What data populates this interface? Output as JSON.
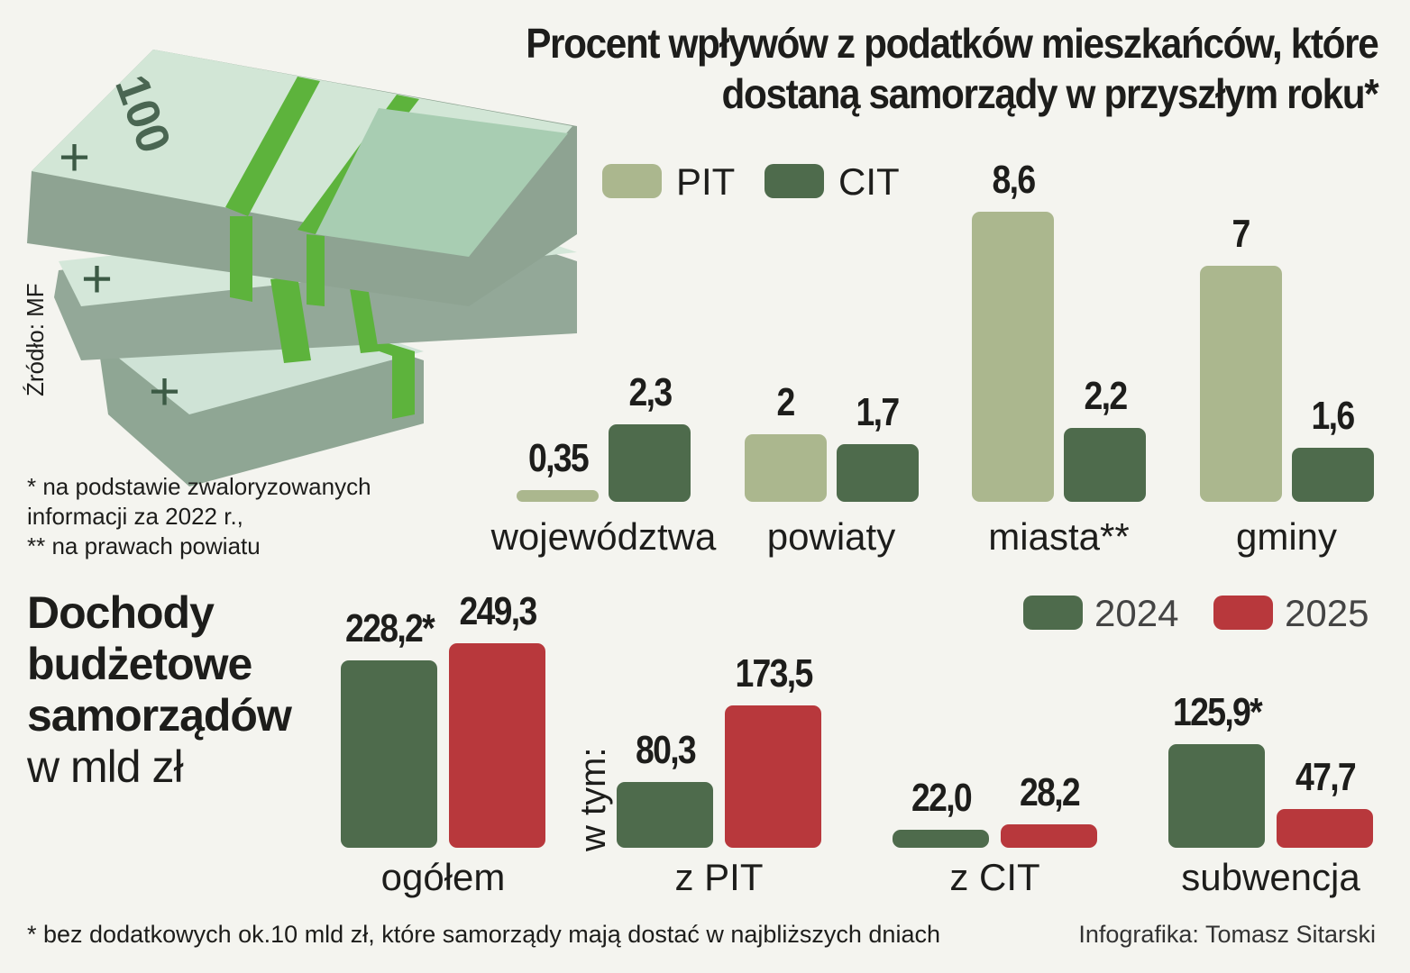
{
  "colors": {
    "pit": "#abb78e",
    "cit": "#4e6b4c",
    "y2024": "#4e6b4c",
    "y2025": "#b8383c",
    "background": "#f4f4ef"
  },
  "title_line1": "Procent wpływów z podatków mieszkańców, które",
  "title_line2": "dostaną samorządy w przyszłym roku*",
  "source": "Źródło: MF",
  "footnote1": "* na podstawie zwaloryzowanych",
  "footnote2": "informacji za 2022 r.,",
  "footnote3": "** na prawach powiatu",
  "bottom_heading": {
    "line1": "Dochody",
    "line2": "budżetowe",
    "line3": "samorządów",
    "line4": "w mld zł"
  },
  "in_which": "w tym:",
  "bottom_footnote": "* bez dodatkowych ok.10 mld zł, które samorządy mają dostać w najbliższych dniach",
  "credit": "Infografika: Tomasz Sitarski",
  "chart_data": [
    {
      "type": "bar",
      "title": "Procent wpływów z podatków mieszkańców, które dostaną samorządy w przyszłym roku*",
      "categories": [
        "województwa",
        "powiaty",
        "miasta**",
        "gminy"
      ],
      "series": [
        {
          "name": "PIT",
          "values": [
            0.35,
            2,
            8.6,
            7
          ],
          "labels": [
            "0,35",
            "2",
            "8,6",
            "7"
          ]
        },
        {
          "name": "CIT",
          "values": [
            2.3,
            1.7,
            2.2,
            1.6
          ],
          "labels": [
            "2,3",
            "1,7",
            "2,2",
            "1,6"
          ]
        }
      ],
      "legend": "top-left",
      "ylim": [
        0,
        8.6
      ]
    },
    {
      "type": "bar",
      "title": "Dochody budżetowe samorządów w mld zł",
      "categories": [
        "ogółem",
        "z PIT",
        "z CIT",
        "subwencja"
      ],
      "series": [
        {
          "name": "2024",
          "values": [
            228.2,
            80.3,
            22.0,
            125.9
          ],
          "labels": [
            "228,2*",
            "80,3",
            "22,0",
            "125,9*"
          ]
        },
        {
          "name": "2025",
          "values": [
            249.3,
            173.5,
            28.2,
            47.7
          ],
          "labels": [
            "249,3",
            "173,5",
            "28,2",
            "47,7"
          ]
        }
      ],
      "legend": "top-right",
      "ylim": [
        0,
        249.3
      ]
    }
  ]
}
